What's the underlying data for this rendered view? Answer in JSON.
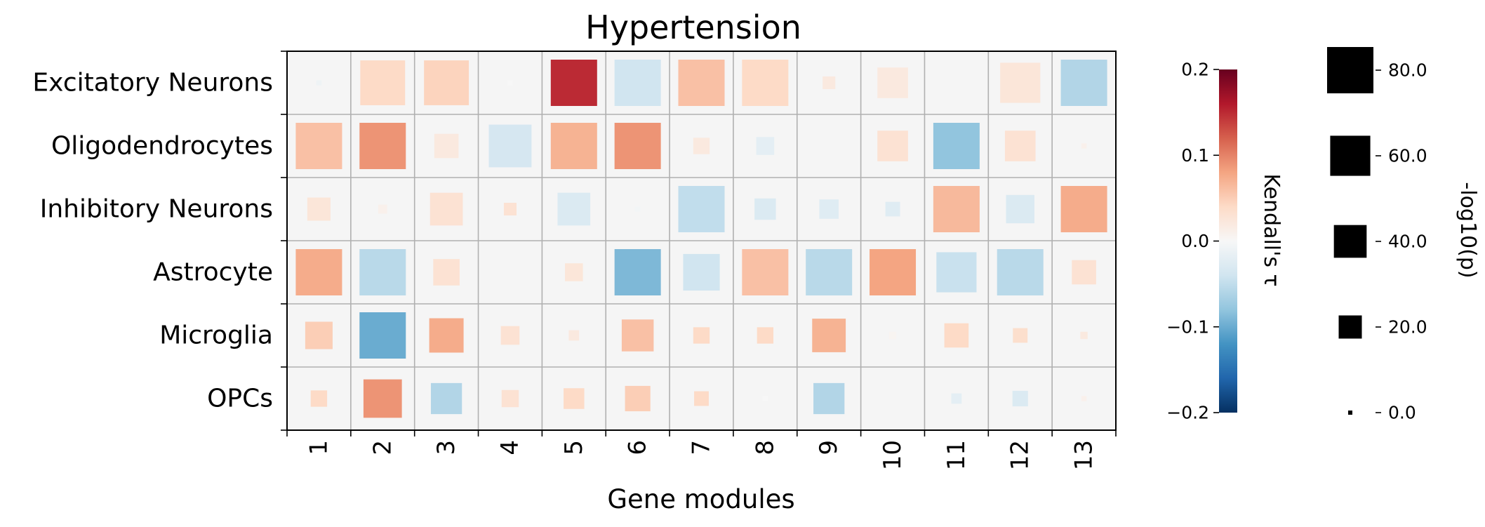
{
  "chart_data": {
    "type": "heatmap",
    "title": "Hypertension",
    "xlabel": "Gene modules",
    "ylabel": "",
    "x_categories": [
      "1",
      "2",
      "3",
      "4",
      "5",
      "6",
      "7",
      "8",
      "9",
      "10",
      "11",
      "12",
      "13"
    ],
    "y_categories": [
      "Excitatory Neurons",
      "Oligodendrocytes",
      "Inhibitory Neurons",
      "Astrocyte",
      "Microglia",
      "OPCs"
    ],
    "color_metric": "Kendall's τ",
    "size_metric": "-log10(p)",
    "color_range": [
      -0.2,
      0.2
    ],
    "size_range": [
      0,
      80
    ],
    "grid": true,
    "colorbar": {
      "label": "Kendall's τ",
      "ticks": [
        "0.2",
        "0.1",
        "0.0",
        "−0.1",
        "−0.2"
      ],
      "tick_values": [
        0.2,
        0.1,
        0.0,
        -0.1,
        -0.2
      ],
      "colors": [
        "#67001f",
        "#b2182b",
        "#d6604d",
        "#f4a582",
        "#fddbc7",
        "#f7f7f7",
        "#d1e5f0",
        "#92c5de",
        "#4393c3",
        "#2166ac",
        "#053061"
      ]
    },
    "size_legend": {
      "label": "-log10(p)",
      "ticks": [
        "80.0",
        "60.0",
        "40.0",
        "20.0",
        "0.0"
      ],
      "tick_values": [
        80,
        60,
        40,
        20,
        0
      ]
    },
    "cells": [
      {
        "row": "Excitatory Neurons",
        "col": "1",
        "tau": -0.01,
        "size": 1
      },
      {
        "row": "Excitatory Neurons",
        "col": "2",
        "tau": 0.04,
        "size": 75
      },
      {
        "row": "Excitatory Neurons",
        "col": "3",
        "tau": 0.045,
        "size": 75
      },
      {
        "row": "Excitatory Neurons",
        "col": "4",
        "tau": 0.0,
        "size": 1
      },
      {
        "row": "Excitatory Neurons",
        "col": "5",
        "tau": 0.15,
        "size": 80
      },
      {
        "row": "Excitatory Neurons",
        "col": "6",
        "tau": -0.04,
        "size": 80
      },
      {
        "row": "Excitatory Neurons",
        "col": "7",
        "tau": 0.06,
        "size": 80
      },
      {
        "row": "Excitatory Neurons",
        "col": "8",
        "tau": 0.04,
        "size": 80
      },
      {
        "row": "Excitatory Neurons",
        "col": "9",
        "tau": 0.02,
        "size": 6
      },
      {
        "row": "Excitatory Neurons",
        "col": "10",
        "tau": 0.02,
        "size": 35
      },
      {
        "row": "Excitatory Neurons",
        "col": "11",
        "tau": 0.0,
        "size": 0
      },
      {
        "row": "Excitatory Neurons",
        "col": "12",
        "tau": 0.025,
        "size": 60
      },
      {
        "row": "Excitatory Neurons",
        "col": "13",
        "tau": -0.06,
        "size": 80
      },
      {
        "row": "Oligodendrocytes",
        "col": "1",
        "tau": 0.06,
        "size": 80
      },
      {
        "row": "Oligodendrocytes",
        "col": "2",
        "tau": 0.09,
        "size": 80
      },
      {
        "row": "Oligodendrocytes",
        "col": "3",
        "tau": 0.02,
        "size": 22
      },
      {
        "row": "Oligodendrocytes",
        "col": "4",
        "tau": -0.035,
        "size": 68
      },
      {
        "row": "Oligodendrocytes",
        "col": "5",
        "tau": 0.07,
        "size": 80
      },
      {
        "row": "Oligodendrocytes",
        "col": "6",
        "tau": 0.09,
        "size": 80
      },
      {
        "row": "Oligodendrocytes",
        "col": "7",
        "tau": 0.02,
        "size": 10
      },
      {
        "row": "Oligodendrocytes",
        "col": "8",
        "tau": -0.02,
        "size": 12
      },
      {
        "row": "Oligodendrocytes",
        "col": "9",
        "tau": 0.0,
        "size": 0
      },
      {
        "row": "Oligodendrocytes",
        "col": "10",
        "tau": 0.03,
        "size": 35
      },
      {
        "row": "Oligodendrocytes",
        "col": "11",
        "tau": -0.08,
        "size": 80
      },
      {
        "row": "Oligodendrocytes",
        "col": "12",
        "tau": 0.03,
        "size": 35
      },
      {
        "row": "Oligodendrocytes",
        "col": "13",
        "tau": 0.01,
        "size": 1
      },
      {
        "row": "Inhibitory Neurons",
        "col": "1",
        "tau": 0.025,
        "size": 20
      },
      {
        "row": "Inhibitory Neurons",
        "col": "2",
        "tau": 0.01,
        "size": 3
      },
      {
        "row": "Inhibitory Neurons",
        "col": "3",
        "tau": 0.03,
        "size": 40
      },
      {
        "row": "Inhibitory Neurons",
        "col": "4",
        "tau": 0.03,
        "size": 6
      },
      {
        "row": "Inhibitory Neurons",
        "col": "5",
        "tau": -0.03,
        "size": 40
      },
      {
        "row": "Inhibitory Neurons",
        "col": "6",
        "tau": -0.005,
        "size": 1
      },
      {
        "row": "Inhibitory Neurons",
        "col": "7",
        "tau": -0.05,
        "size": 80
      },
      {
        "row": "Inhibitory Neurons",
        "col": "8",
        "tau": -0.03,
        "size": 17
      },
      {
        "row": "Inhibitory Neurons",
        "col": "9",
        "tau": -0.025,
        "size": 14
      },
      {
        "row": "Inhibitory Neurons",
        "col": "10",
        "tau": -0.025,
        "size": 8
      },
      {
        "row": "Inhibitory Neurons",
        "col": "11",
        "tau": 0.065,
        "size": 80
      },
      {
        "row": "Inhibitory Neurons",
        "col": "12",
        "tau": -0.03,
        "size": 30
      },
      {
        "row": "Inhibitory Neurons",
        "col": "13",
        "tau": 0.075,
        "size": 80
      },
      {
        "row": "Astrocyte",
        "col": "1",
        "tau": 0.075,
        "size": 80
      },
      {
        "row": "Astrocyte",
        "col": "2",
        "tau": -0.055,
        "size": 80
      },
      {
        "row": "Astrocyte",
        "col": "3",
        "tau": 0.03,
        "size": 26
      },
      {
        "row": "Astrocyte",
        "col": "4",
        "tau": 0.0,
        "size": 0
      },
      {
        "row": "Astrocyte",
        "col": "5",
        "tau": 0.025,
        "size": 12
      },
      {
        "row": "Astrocyte",
        "col": "6",
        "tau": -0.09,
        "size": 80
      },
      {
        "row": "Astrocyte",
        "col": "7",
        "tau": -0.04,
        "size": 50
      },
      {
        "row": "Astrocyte",
        "col": "8",
        "tau": 0.06,
        "size": 80
      },
      {
        "row": "Astrocyte",
        "col": "9",
        "tau": -0.055,
        "size": 80
      },
      {
        "row": "Astrocyte",
        "col": "10",
        "tau": 0.08,
        "size": 80
      },
      {
        "row": "Astrocyte",
        "col": "11",
        "tau": -0.045,
        "size": 60
      },
      {
        "row": "Astrocyte",
        "col": "12",
        "tau": -0.055,
        "size": 80
      },
      {
        "row": "Astrocyte",
        "col": "13",
        "tau": 0.03,
        "size": 22
      },
      {
        "row": "Microglia",
        "col": "1",
        "tau": 0.05,
        "size": 28
      },
      {
        "row": "Microglia",
        "col": "2",
        "tau": -0.1,
        "size": 80
      },
      {
        "row": "Microglia",
        "col": "3",
        "tau": 0.075,
        "size": 44
      },
      {
        "row": "Microglia",
        "col": "4",
        "tau": 0.03,
        "size": 13
      },
      {
        "row": "Microglia",
        "col": "5",
        "tau": 0.02,
        "size": 4
      },
      {
        "row": "Microglia",
        "col": "6",
        "tau": 0.06,
        "size": 38
      },
      {
        "row": "Microglia",
        "col": "7",
        "tau": 0.04,
        "size": 10
      },
      {
        "row": "Microglia",
        "col": "8",
        "tau": 0.04,
        "size": 10
      },
      {
        "row": "Microglia",
        "col": "9",
        "tau": 0.07,
        "size": 42
      },
      {
        "row": "Microglia",
        "col": "10",
        "tau": 0.005,
        "size": 2
      },
      {
        "row": "Microglia",
        "col": "11",
        "tau": 0.04,
        "size": 22
      },
      {
        "row": "Microglia",
        "col": "12",
        "tau": 0.035,
        "size": 8
      },
      {
        "row": "Microglia",
        "col": "13",
        "tau": 0.02,
        "size": 2
      },
      {
        "row": "OPCs",
        "col": "1",
        "tau": 0.04,
        "size": 10
      },
      {
        "row": "OPCs",
        "col": "2",
        "tau": 0.09,
        "size": 55
      },
      {
        "row": "OPCs",
        "col": "3",
        "tau": -0.06,
        "size": 36
      },
      {
        "row": "OPCs",
        "col": "4",
        "tau": 0.03,
        "size": 11
      },
      {
        "row": "OPCs",
        "col": "5",
        "tau": 0.04,
        "size": 16
      },
      {
        "row": "OPCs",
        "col": "6",
        "tau": 0.05,
        "size": 24
      },
      {
        "row": "OPCs",
        "col": "7",
        "tau": 0.04,
        "size": 8
      },
      {
        "row": "OPCs",
        "col": "8",
        "tau": 0.0,
        "size": 1
      },
      {
        "row": "OPCs",
        "col": "9",
        "tau": -0.06,
        "size": 36
      },
      {
        "row": "OPCs",
        "col": "10",
        "tau": 0.0,
        "size": 0
      },
      {
        "row": "OPCs",
        "col": "11",
        "tau": -0.02,
        "size": 4
      },
      {
        "row": "OPCs",
        "col": "12",
        "tau": -0.03,
        "size": 9
      },
      {
        "row": "OPCs",
        "col": "13",
        "tau": 0.01,
        "size": 1
      }
    ]
  }
}
